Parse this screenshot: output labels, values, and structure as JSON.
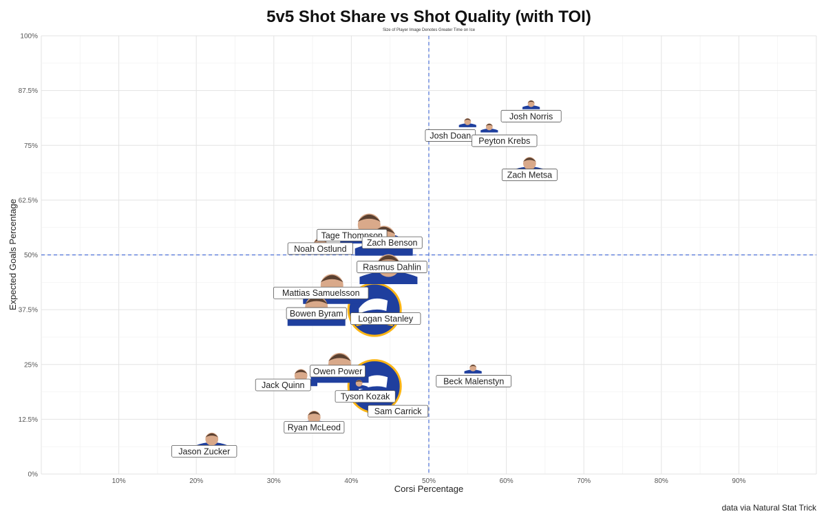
{
  "chart_data": {
    "type": "scatter",
    "title": "5v5 Shot Share vs Shot Quality (with TOI)",
    "subtitle": "Size of Player Image Denotes Greater Time on Ice",
    "xlabel": "Corsi Percentage",
    "ylabel": "Expected Goals Percentage",
    "caption": "data via Natural Stat Trick",
    "xlim": [
      0,
      100
    ],
    "ylim": [
      0,
      100
    ],
    "x_ticks": [
      "10%",
      "20%",
      "30%",
      "40%",
      "50%",
      "60%",
      "70%",
      "80%",
      "90%"
    ],
    "x_tick_values": [
      10,
      20,
      30,
      40,
      50,
      60,
      70,
      80,
      90
    ],
    "y_ticks": [
      "0%",
      "12.5%",
      "25%",
      "37.5%",
      "50%",
      "62.5%",
      "75%",
      "87.5%",
      "100%"
    ],
    "y_tick_values": [
      0,
      12.5,
      25,
      37.5,
      50,
      62.5,
      75,
      87.5,
      100
    ],
    "reference_lines": {
      "x": 50,
      "y": 50,
      "color": "#4a6fd6",
      "style": "dashed"
    },
    "grid": true,
    "colors": {
      "jersey": "#1f3f9e",
      "logo_gold": "#fcb514",
      "skin": "#d9a98a",
      "hair": "#5a4030"
    },
    "points": [
      {
        "name": "Josh Norris",
        "x": 63.2,
        "y": 84.8,
        "toi": "low"
      },
      {
        "name": "Josh Doan",
        "x": 55.0,
        "y": 80.7,
        "toi": "low"
      },
      {
        "name": "Peyton Krebs",
        "x": 57.8,
        "y": 79.5,
        "toi": "low"
      },
      {
        "name": "Zach Metsa",
        "x": 63.0,
        "y": 71.4,
        "toi": "medium"
      },
      {
        "name": "Tage Thompson",
        "x": 42.3,
        "y": 57.8,
        "toi": "high"
      },
      {
        "name": "Zach Benson",
        "x": 44.2,
        "y": 55.0,
        "toi": "high"
      },
      {
        "name": "Noah Ostlund",
        "x": 36.0,
        "y": 53.0,
        "toi": "medium"
      },
      {
        "name": "Rasmus Dahlin",
        "x": 44.8,
        "y": 48.5,
        "toi": "high"
      },
      {
        "name": "Mattias Samuelsson",
        "x": 37.5,
        "y": 44.0,
        "toi": "high"
      },
      {
        "name": "Logan Stanley",
        "x": 43.0,
        "y": 37.5,
        "toi": "team-logo"
      },
      {
        "name": "Bowen Byram",
        "x": 35.5,
        "y": 39.0,
        "toi": "high"
      },
      {
        "name": "Owen Power",
        "x": 38.5,
        "y": 26.0,
        "toi": "high"
      },
      {
        "name": "Jack Quinn",
        "x": 33.5,
        "y": 23.0,
        "toi": "medium"
      },
      {
        "name": "Tyson Kozak",
        "x": 41.0,
        "y": 21.0,
        "toi": "low"
      },
      {
        "name": "Sam Carrick",
        "x": 43.0,
        "y": 20.0,
        "toi": "team-logo"
      },
      {
        "name": "Beck Malenstyn",
        "x": 55.7,
        "y": 24.5,
        "toi": "low"
      },
      {
        "name": "Ryan McLeod",
        "x": 35.2,
        "y": 13.5,
        "toi": "medium"
      },
      {
        "name": "Jason Zucker",
        "x": 22.0,
        "y": 8.5,
        "toi": "medium"
      }
    ]
  }
}
